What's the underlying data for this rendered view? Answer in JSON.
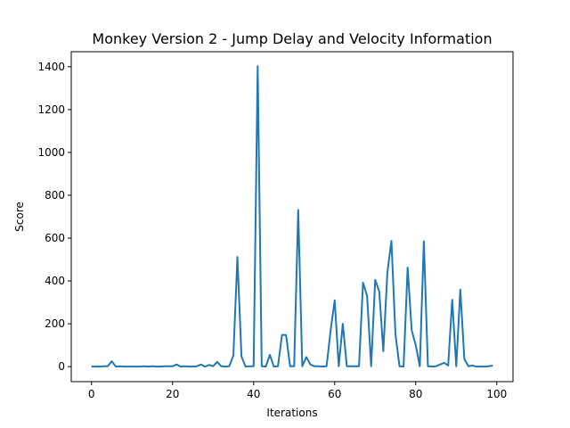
{
  "chart_data": {
    "type": "line",
    "title": "Monkey Version 2 - Jump Delay and Velocity Information",
    "xlabel": "Iterations",
    "ylabel": "Score",
    "xlim": [
      -5,
      104
    ],
    "ylim": [
      -70,
      1470
    ],
    "x_ticks": [
      0,
      20,
      40,
      60,
      80,
      100
    ],
    "y_ticks": [
      0,
      200,
      400,
      600,
      800,
      1000,
      1200,
      1400
    ],
    "grid": false,
    "legend": "none",
    "series": [
      {
        "color": "#1f77b4",
        "x": [
          0,
          1,
          2,
          3,
          4,
          5,
          6,
          7,
          8,
          9,
          10,
          11,
          12,
          13,
          14,
          15,
          16,
          17,
          18,
          19,
          20,
          21,
          22,
          23,
          24,
          25,
          26,
          27,
          28,
          29,
          30,
          31,
          32,
          33,
          34,
          35,
          36,
          37,
          38,
          39,
          40,
          41,
          42,
          43,
          44,
          45,
          46,
          47,
          48,
          49,
          50,
          51,
          52,
          53,
          54,
          55,
          56,
          57,
          58,
          59,
          60,
          61,
          62,
          63,
          64,
          65,
          66,
          67,
          68,
          69,
          70,
          71,
          72,
          73,
          74,
          75,
          76,
          77,
          78,
          79,
          80,
          81,
          82,
          83,
          84,
          85,
          86,
          87,
          88,
          89,
          90,
          91,
          92,
          93,
          94,
          95,
          96,
          97,
          98,
          99
        ],
        "y": [
          0,
          0,
          0,
          2,
          2,
          25,
          0,
          2,
          0,
          0,
          0,
          0,
          0,
          2,
          0,
          2,
          0,
          0,
          2,
          2,
          2,
          10,
          0,
          2,
          0,
          0,
          2,
          10,
          0,
          8,
          2,
          22,
          2,
          0,
          2,
          52,
          512,
          48,
          0,
          2,
          2,
          1403,
          2,
          0,
          55,
          0,
          2,
          148,
          148,
          2,
          2,
          731,
          2,
          45,
          10,
          2,
          2,
          0,
          2,
          170,
          310,
          2,
          200,
          2,
          2,
          2,
          2,
          392,
          330,
          2,
          405,
          350,
          72,
          440,
          587,
          150,
          2,
          0,
          462,
          170,
          100,
          2,
          585,
          2,
          0,
          2,
          10,
          18,
          5,
          312,
          2,
          360,
          35,
          2,
          5,
          0,
          0,
          0,
          2,
          5
        ]
      }
    ]
  }
}
